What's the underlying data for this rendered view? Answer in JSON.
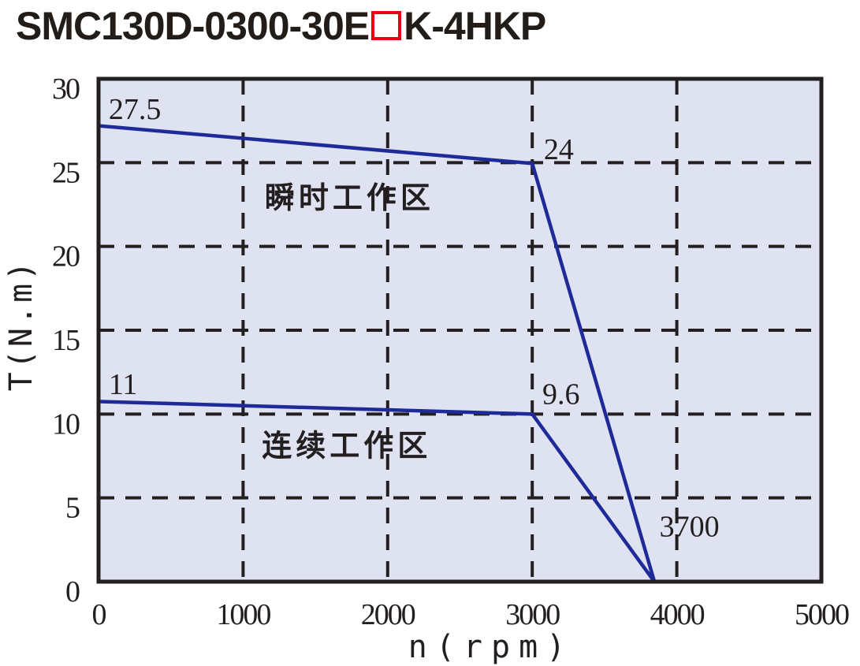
{
  "title": {
    "full": "SMC130D-0300-30E□K-4HKP",
    "prefix": "SMC130D-0300-30E",
    "suffix": "K-4HKP",
    "box_color": "#e60014"
  },
  "chart_data": {
    "type": "line",
    "title": "SMC130D-0300-30E□K-4HKP",
    "xlabel": "n(rpm)",
    "ylabel": "T(N.m)",
    "xlim": [
      0,
      5000
    ],
    "ylim": [
      0,
      30
    ],
    "xticks": [
      0,
      1000,
      2000,
      3000,
      4000,
      5000
    ],
    "yticks": [
      0,
      5,
      10,
      15,
      20,
      25,
      30
    ],
    "grid": "dashed",
    "legend": "none",
    "series": [
      {
        "name": "instantaneous-duty-limit",
        "region_label": "瞬时工作区",
        "x": [
          0,
          3000,
          3700
        ],
        "y": [
          27.5,
          24,
          0
        ],
        "point_labels": [
          "27.5",
          "24",
          "3700"
        ]
      },
      {
        "name": "continuous-duty-limit",
        "region_label": "连续工作区",
        "x": [
          0,
          3000,
          3700
        ],
        "y": [
          11,
          9.6,
          0
        ],
        "point_labels": [
          "11",
          "9.6",
          "3700"
        ]
      }
    ],
    "annotations": [
      {
        "text": "27.5",
        "x": 70,
        "y": 27.6,
        "kind": "value"
      },
      {
        "text": "24",
        "x": 3080,
        "y": 25.2,
        "kind": "value"
      },
      {
        "text": "瞬时工作区",
        "x": 1150,
        "y": 22.3,
        "kind": "region"
      },
      {
        "text": "11",
        "x": 70,
        "y": 11.2,
        "kind": "value"
      },
      {
        "text": "9.6",
        "x": 3070,
        "y": 10.6,
        "kind": "value"
      },
      {
        "text": "连续工作区",
        "x": 1130,
        "y": 7.5,
        "kind": "region"
      },
      {
        "text": "3700",
        "x": 3880,
        "y": 2.7,
        "kind": "value"
      }
    ],
    "render_series": [
      {
        "name": "instantaneous-duty-limit",
        "points": [
          [
            0,
            27.2
          ],
          [
            3000,
            24.95
          ],
          [
            3845,
            0
          ]
        ]
      },
      {
        "name": "continuous-duty-limit",
        "points": [
          [
            0,
            10.75
          ],
          [
            3000,
            10.0
          ],
          [
            3845,
            0
          ]
        ]
      }
    ],
    "colors": {
      "line": "#1f2a99",
      "plot_bg": "#dfe2f1",
      "grid": "#231f20",
      "text": "#231f20"
    }
  }
}
